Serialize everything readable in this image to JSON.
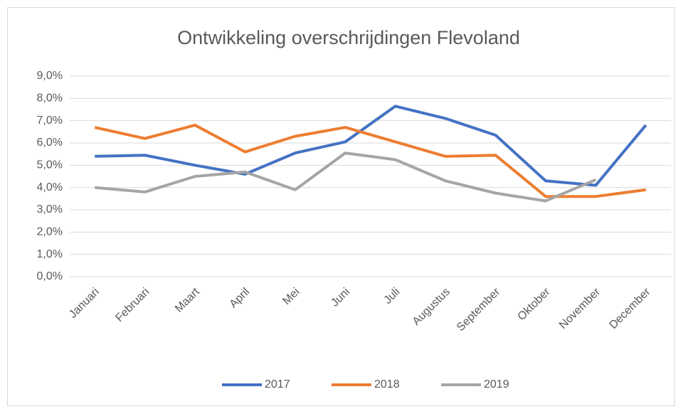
{
  "chart_data": {
    "type": "line",
    "title": "Ontwikkeling overschrijdingen Flevoland",
    "categories": [
      "Januari",
      "Februari",
      "Maart",
      "April",
      "Mei",
      "Juni",
      "Juli",
      "Augustus",
      "September",
      "Oktober",
      "November",
      "December"
    ],
    "series": [
      {
        "name": "2017",
        "color": "#4472c4",
        "values": [
          5.4,
          5.45,
          5.0,
          4.6,
          5.55,
          6.05,
          7.65,
          7.1,
          6.35,
          4.3,
          4.1,
          6.8
        ]
      },
      {
        "name": "2018",
        "color": "#ed7d31",
        "values": [
          6.7,
          6.2,
          6.8,
          5.6,
          6.3,
          6.7,
          6.05,
          5.4,
          5.45,
          3.6,
          3.6,
          3.9
        ]
      },
      {
        "name": "2019",
        "color": "#a5a5a5",
        "values": [
          4.0,
          3.8,
          4.5,
          4.7,
          3.9,
          5.55,
          5.25,
          4.3,
          3.75,
          3.4,
          4.35,
          null
        ]
      }
    ],
    "ylim": [
      0,
      9
    ],
    "yticks": [
      {
        "value": 0,
        "label": "0,0%"
      },
      {
        "value": 1,
        "label": "1,0%"
      },
      {
        "value": 2,
        "label": "2,0%"
      },
      {
        "value": 3,
        "label": "3,0%"
      },
      {
        "value": 4,
        "label": "4,0%"
      },
      {
        "value": 5,
        "label": "5,0%"
      },
      {
        "value": 6,
        "label": "6,0%"
      },
      {
        "value": 7,
        "label": "7,0%"
      },
      {
        "value": 8,
        "label": "8,0%"
      },
      {
        "value": 9,
        "label": "9,0%"
      }
    ],
    "grid": true,
    "legend": "bottom"
  }
}
